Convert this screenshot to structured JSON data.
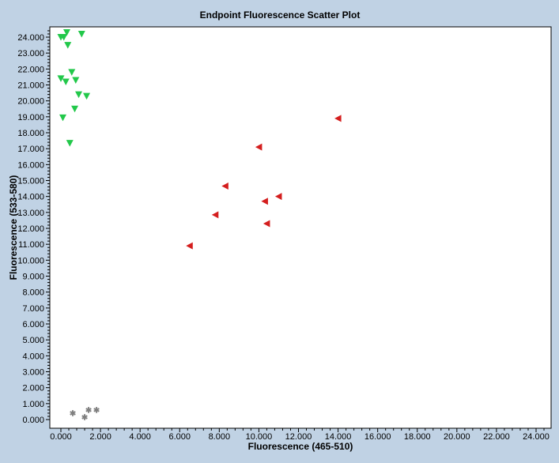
{
  "chart_data": {
    "type": "scatter",
    "title": "Endpoint Fluorescence Scatter Plot",
    "xlabel": "Fluorescence (465-510)",
    "ylabel": "Fluorescence (533-580)",
    "xlim": [
      0,
      24000
    ],
    "ylim": [
      0,
      24500
    ],
    "x_ticks": [
      "0.000",
      "2.000",
      "4.000",
      "6.000",
      "8.000",
      "10.000",
      "12.000",
      "14.000",
      "16.000",
      "18.000",
      "20.000",
      "22.000",
      "24.000"
    ],
    "y_ticks": [
      "0.000",
      "1.000",
      "2.000",
      "3.000",
      "4.000",
      "5.000",
      "6.000",
      "7.000",
      "8.000",
      "9.000",
      "10.000",
      "11.000",
      "12.000",
      "13.000",
      "14.000",
      "15.000",
      "16.000",
      "17.000",
      "18.000",
      "19.000",
      "20.000",
      "21.000",
      "22.000",
      "23.000",
      "24.000"
    ],
    "grid": false,
    "legend": "none",
    "series": [
      {
        "marker": "triangle-down",
        "color": "#22c84a",
        "points": [
          {
            "x": 0,
            "y": 24000
          },
          {
            "x": 150,
            "y": 24000
          },
          {
            "x": 300,
            "y": 24300
          },
          {
            "x": 1050,
            "y": 24200
          },
          {
            "x": 350,
            "y": 23500
          },
          {
            "x": 550,
            "y": 21800
          },
          {
            "x": 0,
            "y": 21400
          },
          {
            "x": 250,
            "y": 21200
          },
          {
            "x": 750,
            "y": 21300
          },
          {
            "x": 900,
            "y": 20400
          },
          {
            "x": 1300,
            "y": 20300
          },
          {
            "x": 700,
            "y": 19500
          },
          {
            "x": 100,
            "y": 18950
          },
          {
            "x": 450,
            "y": 17350
          }
        ]
      },
      {
        "marker": "triangle-left",
        "color": "#d41e1e",
        "points": [
          {
            "x": 14000,
            "y": 18900
          },
          {
            "x": 10000,
            "y": 17100
          },
          {
            "x": 8300,
            "y": 14650
          },
          {
            "x": 11000,
            "y": 14000
          },
          {
            "x": 10300,
            "y": 13700
          },
          {
            "x": 7800,
            "y": 12850
          },
          {
            "x": 10400,
            "y": 12300
          },
          {
            "x": 6500,
            "y": 10900
          }
        ]
      },
      {
        "marker": "asterisk",
        "color": "#808080",
        "points": [
          {
            "x": 600,
            "y": 400
          },
          {
            "x": 1200,
            "y": 150
          },
          {
            "x": 1400,
            "y": 600
          },
          {
            "x": 1800,
            "y": 600
          }
        ]
      }
    ]
  }
}
